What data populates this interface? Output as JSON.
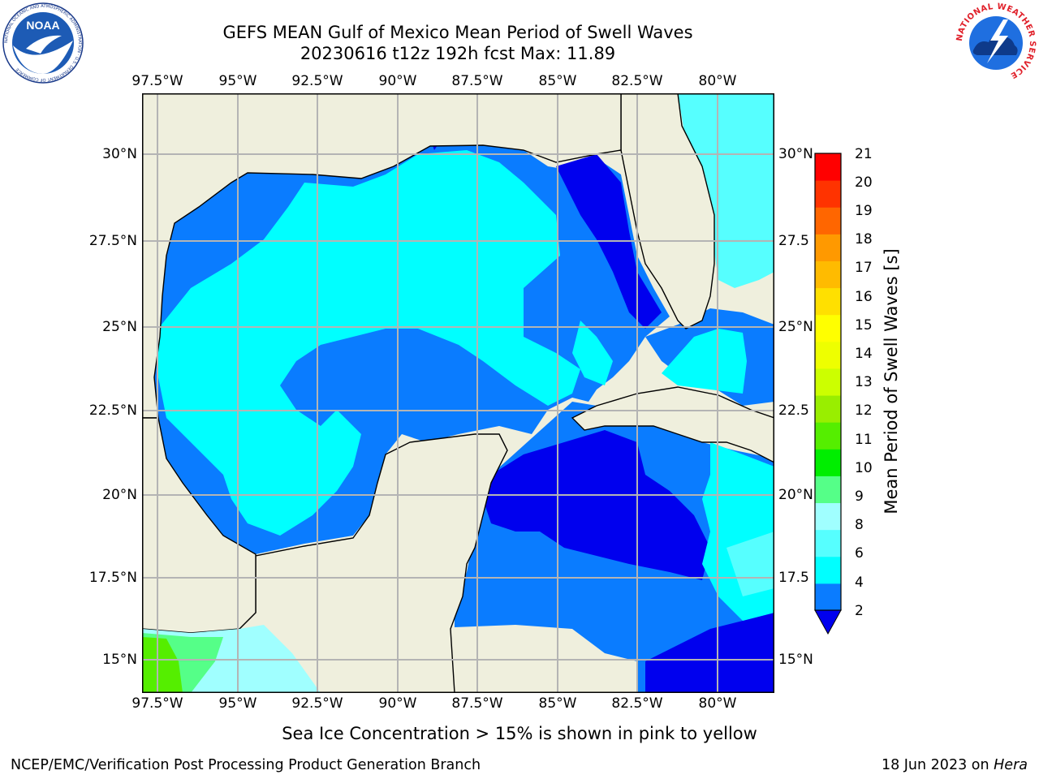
{
  "header": {
    "title_line1": "GEFS MEAN Gulf of Mexico Mean Period of Swell Waves",
    "title_line2": "20230616 t12z 192h fcst   Max: 11.89"
  },
  "logos": {
    "noara_text": "NOAA",
    "noaa_ring_text": "NATIONAL OCEANIC AND ATMOSPHERIC ADMINISTRATION · U.S. DEPARTMENT OF COMMERCE",
    "nws_ring_text": "NATIONAL WEATHER SERVICE"
  },
  "map": {
    "lon_ticks": [
      "97.5°W",
      "95°W",
      "92.5°W",
      "90°W",
      "87.5°W",
      "85°W",
      "82.5°W",
      "80°W"
    ],
    "lat_ticks_left": [
      "30°N",
      "27.5°N",
      "25°N",
      "22.5°N",
      "20°N",
      "17.5°N",
      "15°N"
    ],
    "lat_ticks_right": [
      "30°N",
      "27.5",
      "25°N",
      "22.5",
      "20°N",
      "17.5",
      "15°N"
    ],
    "colors": {
      "land": "#efefdd",
      "ocean_low": "#0a7cff",
      "ocean_mid": "#00ffff",
      "grid": "#b4b4b4"
    }
  },
  "colorbar": {
    "label": "Mean Period of Swell Waves [s]",
    "tick_labels": [
      "2",
      "4",
      "6",
      "8",
      "9",
      "10",
      "11",
      "12",
      "13",
      "14",
      "15",
      "16",
      "17",
      "18",
      "19",
      "20",
      "21"
    ],
    "colors": [
      "#0a7cff",
      "#00ffff",
      "#56ffff",
      "#a0ffff",
      "#55ff88",
      "#00ee00",
      "#55ee00",
      "#99ee00",
      "#ccff00",
      "#eeff00",
      "#ffff00",
      "#ffe000",
      "#ffbb00",
      "#ff9900",
      "#ff6600",
      "#ff3300",
      "#ff0000"
    ],
    "under_color": "#0000ee"
  },
  "notes": {
    "sea_ice": "Sea Ice Concentration > 15% is shown in pink to yellow"
  },
  "footer": {
    "left": "NCEP/EMC/Verification Post Processing Product Generation Branch",
    "right_date": "18 Jun 2023 on ",
    "right_host": "Hera"
  }
}
